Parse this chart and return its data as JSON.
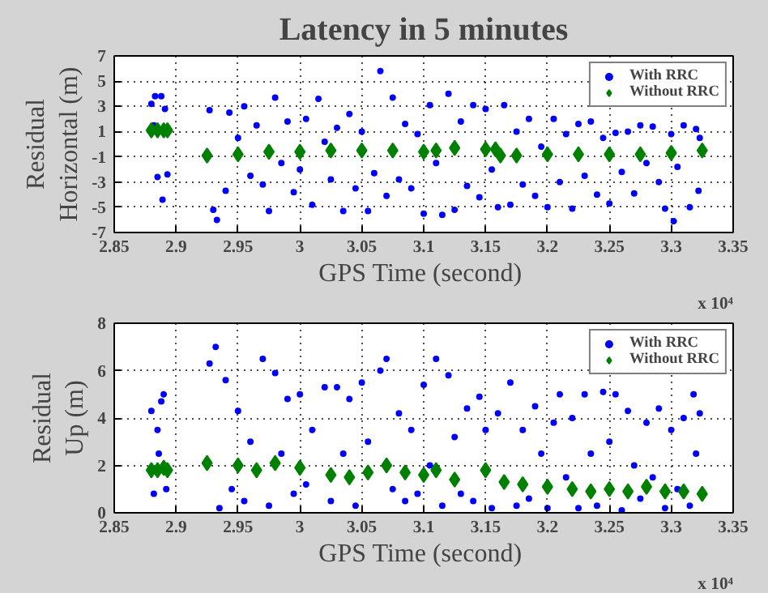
{
  "chart_data": [
    {
      "type": "scatter",
      "title": "Latency in 5 minutes",
      "xlabel": "GPS Time  (second)",
      "ylabel": "Residual\nHorizontal (m)",
      "annotations": [
        "x 10⁴"
      ],
      "xlim": [
        2.85,
        3.35
      ],
      "xticks": [
        2.85,
        2.9,
        2.95,
        3,
        3.05,
        3.1,
        3.15,
        3.2,
        3.25,
        3.3,
        3.35
      ],
      "ylim": [
        -7,
        7
      ],
      "yticks": [
        -7,
        -5,
        -3,
        -1,
        1,
        3,
        5,
        7
      ],
      "grid": true,
      "legend": "top right",
      "series": [
        {
          "name": "With RRC",
          "color": "#0000ff",
          "marker": "circle",
          "x": [
            2.88,
            2.883,
            2.888,
            2.885,
            2.889,
            2.893,
            2.882,
            2.891,
            2.927,
            2.93,
            2.933,
            2.94,
            2.943,
            2.95,
            2.955,
            2.96,
            2.965,
            2.97,
            2.975,
            2.98,
            2.985,
            2.99,
            2.995,
            3.0,
            3.005,
            3.01,
            3.015,
            3.02,
            3.025,
            3.03,
            3.035,
            3.04,
            3.045,
            3.05,
            3.055,
            3.06,
            3.065,
            3.07,
            3.075,
            3.08,
            3.085,
            3.09,
            3.095,
            3.1,
            3.105,
            3.11,
            3.115,
            3.12,
            3.125,
            3.13,
            3.135,
            3.14,
            3.145,
            3.15,
            3.155,
            3.16,
            3.165,
            3.17,
            3.175,
            3.18,
            3.185,
            3.19,
            3.195,
            3.2,
            3.205,
            3.21,
            3.215,
            3.22,
            3.225,
            3.23,
            3.235,
            3.24,
            3.245,
            3.25,
            3.255,
            3.26,
            3.265,
            3.27,
            3.275,
            3.28,
            3.285,
            3.29,
            3.295,
            3.3,
            3.302,
            3.305,
            3.31,
            3.315,
            3.32,
            3.322,
            3.323
          ],
          "values": [
            3.2,
            3.8,
            3.8,
            -2.6,
            -4.4,
            -2.4,
            1.5,
            2.8,
            2.7,
            -5.2,
            -6.0,
            -3.7,
            2.5,
            0.5,
            3.0,
            -2.5,
            1.5,
            -3.2,
            -5.3,
            3.7,
            -1.5,
            1.8,
            -3.8,
            -2.0,
            2.0,
            -4.8,
            3.6,
            0.2,
            -2.8,
            1.3,
            -5.3,
            2.4,
            -3.5,
            1.0,
            -5.3,
            -2.3,
            5.8,
            -4.1,
            3.7,
            -2.8,
            1.6,
            -3.5,
            0.8,
            -5.5,
            3.1,
            -1.5,
            -5.6,
            4.0,
            -5.2,
            1.8,
            -3.3,
            3.1,
            -4.2,
            2.8,
            -2.0,
            -5.0,
            3.1,
            -4.8,
            1.0,
            -3.2,
            2.0,
            -4.1,
            -0.2,
            -5.0,
            2.0,
            -3.0,
            0.8,
            -5.1,
            1.6,
            -2.5,
            1.8,
            -4.0,
            0.5,
            -4.7,
            0.9,
            -2.2,
            1.0,
            -3.9,
            1.5,
            -1.5,
            1.4,
            -3.0,
            -5.1,
            0.8,
            -6.1,
            -1.8,
            1.5,
            -5.0,
            1.2,
            -3.7,
            0.5
          ]
        },
        {
          "name": "Without RRC",
          "color": "#008000",
          "marker": "diamond",
          "x": [
            2.88,
            2.885,
            2.89,
            2.893,
            2.925,
            2.95,
            2.975,
            3.0,
            3.025,
            3.05,
            3.075,
            3.1,
            3.11,
            3.125,
            3.15,
            3.158,
            3.162,
            3.175,
            3.2,
            3.225,
            3.25,
            3.275,
            3.3,
            3.325
          ],
          "values": [
            1.1,
            1.1,
            1.1,
            1.1,
            -0.9,
            -0.8,
            -0.6,
            -0.6,
            -0.5,
            -0.5,
            -0.5,
            -0.6,
            -0.5,
            -0.3,
            -0.4,
            -0.4,
            -0.9,
            -0.9,
            -0.8,
            -0.8,
            -0.8,
            -0.8,
            -0.7,
            -0.5
          ]
        }
      ]
    },
    {
      "type": "scatter",
      "xlabel": "GPS Time  (second)",
      "ylabel": "Residual\nUp (m)",
      "annotations": [
        "x 10⁴"
      ],
      "xlim": [
        2.85,
        3.35
      ],
      "xticks": [
        2.85,
        2.9,
        2.95,
        3,
        3.05,
        3.1,
        3.15,
        3.2,
        3.25,
        3.3,
        3.35
      ],
      "ylim": [
        0,
        8
      ],
      "yticks": [
        0,
        2,
        4,
        6,
        8
      ],
      "grid": true,
      "legend": "top right",
      "series": [
        {
          "name": "With RRC",
          "color": "#0000ff",
          "marker": "circle",
          "x": [
            2.88,
            2.882,
            2.885,
            2.888,
            2.89,
            2.892,
            2.886,
            2.927,
            2.932,
            2.935,
            2.94,
            2.945,
            2.95,
            2.955,
            2.96,
            2.97,
            2.975,
            2.98,
            2.985,
            2.99,
            2.995,
            3.0,
            3.005,
            3.01,
            3.02,
            3.025,
            3.03,
            3.035,
            3.04,
            3.045,
            3.05,
            3.055,
            3.065,
            3.07,
            3.075,
            3.08,
            3.085,
            3.09,
            3.095,
            3.1,
            3.105,
            3.11,
            3.115,
            3.12,
            3.125,
            3.13,
            3.135,
            3.14,
            3.145,
            3.15,
            3.155,
            3.16,
            3.17,
            3.175,
            3.18,
            3.185,
            3.19,
            3.195,
            3.2,
            3.205,
            3.21,
            3.215,
            3.22,
            3.225,
            3.23,
            3.235,
            3.24,
            3.245,
            3.25,
            3.255,
            3.26,
            3.265,
            3.27,
            3.275,
            3.28,
            3.285,
            3.29,
            3.295,
            3.3,
            3.305,
            3.31,
            3.315,
            3.318,
            3.32,
            3.323
          ],
          "values": [
            4.3,
            0.8,
            3.5,
            4.7,
            5.0,
            1.0,
            2.5,
            6.3,
            7.0,
            0.2,
            5.6,
            1.0,
            4.3,
            0.5,
            3.0,
            6.5,
            0.3,
            5.9,
            2.5,
            4.8,
            0.8,
            5.0,
            1.2,
            3.5,
            5.3,
            0.5,
            5.3,
            2.5,
            4.8,
            0.3,
            5.5,
            3.0,
            6.0,
            6.5,
            1.0,
            4.2,
            0.5,
            3.5,
            0.8,
            5.4,
            2.0,
            6.5,
            0.3,
            5.8,
            3.2,
            0.8,
            4.4,
            0.5,
            4.9,
            3.5,
            0.2,
            4.2,
            5.5,
            0.3,
            3.5,
            0.6,
            4.5,
            2.5,
            0.2,
            3.8,
            5.0,
            1.5,
            4.0,
            0.2,
            5.0,
            2.5,
            0.3,
            5.1,
            3.0,
            5.0,
            0.1,
            4.3,
            2.0,
            0.6,
            3.8,
            1.5,
            4.4,
            0.2,
            3.5,
            1.0,
            4.0,
            0.3,
            5.0,
            2.5,
            4.2
          ]
        },
        {
          "name": "Without RRC",
          "color": "#008000",
          "marker": "diamond",
          "x": [
            2.88,
            2.885,
            2.89,
            2.893,
            2.925,
            2.95,
            2.965,
            2.98,
            3.0,
            3.025,
            3.04,
            3.055,
            3.07,
            3.085,
            3.1,
            3.11,
            3.125,
            3.15,
            3.165,
            3.18,
            3.2,
            3.22,
            3.235,
            3.25,
            3.265,
            3.28,
            3.295,
            3.31,
            3.325
          ],
          "values": [
            1.8,
            1.8,
            1.9,
            1.8,
            2.1,
            2.0,
            1.8,
            2.1,
            1.9,
            1.6,
            1.5,
            1.7,
            2.0,
            1.7,
            1.6,
            1.8,
            1.4,
            1.8,
            1.3,
            1.2,
            1.1,
            1.0,
            0.9,
            1.0,
            0.9,
            1.1,
            0.9,
            0.9,
            0.8
          ]
        }
      ]
    }
  ]
}
